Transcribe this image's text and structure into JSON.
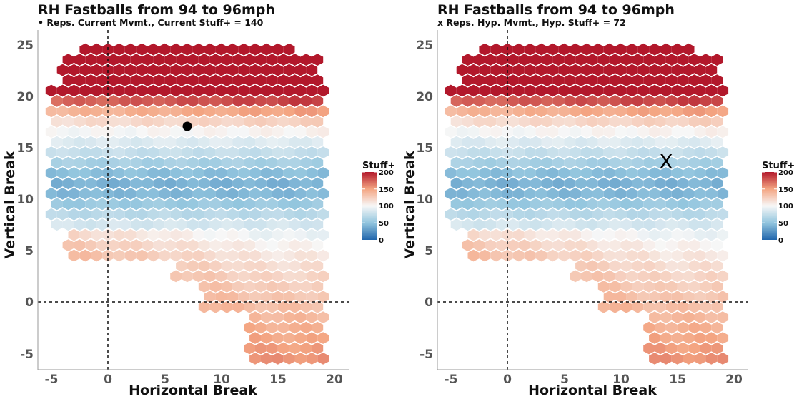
{
  "colors": {
    "low": "#2166ac",
    "mid": "#f7f7f7",
    "high": "#b2182b",
    "axis": "#999999",
    "ref_line": "#111111"
  },
  "chart_data": [
    {
      "type": "heatmap",
      "subtype": "hexbin",
      "title": "RH Fastballs from 94 to 96mph",
      "subtitle": "• Reps. Current Mvmt., Current Stuff+ = 140",
      "xlabel": "Horizontal Break",
      "ylabel": "Vertical Break",
      "x_ticks": [
        "-5",
        "0",
        "5",
        "10",
        "15",
        "20"
      ],
      "y_ticks": [
        "-5",
        "0",
        "5",
        "10",
        "15",
        "20",
        "25"
      ],
      "xlim": [
        -6,
        21
      ],
      "ylim": [
        -6.5,
        26.5
      ],
      "reference_lines": {
        "x": 0,
        "y": 0
      },
      "legend": {
        "title": "Stuff+",
        "ticks": [
          "200",
          "150",
          "100",
          "50",
          "0"
        ],
        "range": [
          0,
          200
        ],
        "placement": "right"
      },
      "marker": {
        "symbol": "dot",
        "x": 7,
        "y": 17,
        "value": 140
      }
    },
    {
      "type": "heatmap",
      "subtype": "hexbin",
      "title": "RH Fastballs from 94 to 96mph",
      "subtitle": "x Reps. Hyp. Mvmt., Hyp. Stuff+ = 72",
      "xlabel": "Horizontal Break",
      "ylabel": "Vertical Break",
      "x_ticks": [
        "-5",
        "0",
        "5",
        "10",
        "15",
        "20"
      ],
      "y_ticks": [
        "-5",
        "0",
        "5",
        "10",
        "15",
        "20",
        "25"
      ],
      "xlim": [
        -6,
        21
      ],
      "ylim": [
        -6.5,
        26.5
      ],
      "reference_lines": {
        "x": 0,
        "y": 0
      },
      "legend": {
        "title": "Stuff+",
        "ticks": [
          "200",
          "150",
          "100",
          "50",
          "0"
        ],
        "range": [
          0,
          200
        ],
        "placement": "right"
      },
      "marker": {
        "symbol": "X",
        "label": "X",
        "x": 14,
        "y": 13.7,
        "value": 72
      }
    }
  ]
}
